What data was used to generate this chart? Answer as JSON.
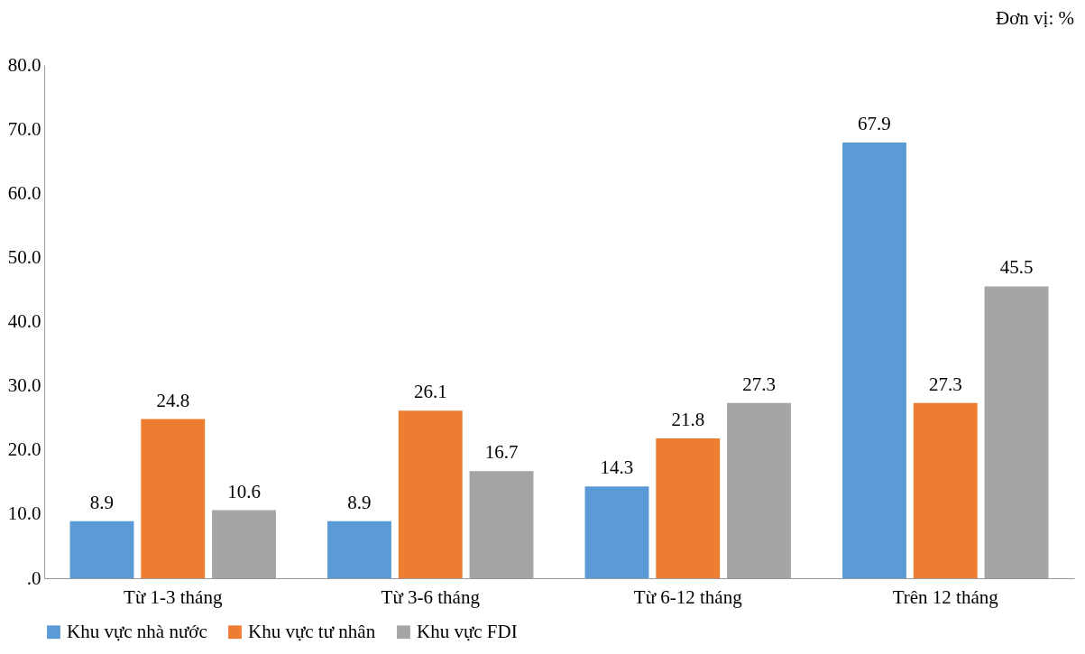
{
  "chart_data": {
    "type": "bar",
    "categories": [
      "Từ 1-3 tháng",
      "Từ 3-6 tháng",
      "Từ 6-12 tháng",
      "Trên 12 tháng"
    ],
    "series": [
      {
        "name": "Khu vực nhà nước",
        "color": "#5b9bd5",
        "values": [
          8.9,
          8.9,
          14.3,
          67.9
        ]
      },
      {
        "name": "Khu vực tư nhân",
        "color": "#ed7d31",
        "values": [
          24.8,
          26.1,
          21.8,
          27.3
        ]
      },
      {
        "name": "Khu vực FDI",
        "color": "#a5a5a5",
        "values": [
          10.6,
          16.7,
          27.3,
          45.5
        ]
      }
    ],
    "ylim": [
      0,
      80
    ],
    "yticks": [
      {
        "value": 0,
        "label": ".0"
      },
      {
        "value": 10,
        "label": "10.0"
      },
      {
        "value": 20,
        "label": "20.0"
      },
      {
        "value": 30,
        "label": "30.0"
      },
      {
        "value": 40,
        "label": "40.0"
      },
      {
        "value": 50,
        "label": "50.0"
      },
      {
        "value": 60,
        "label": "60.0"
      },
      {
        "value": 70,
        "label": "70.0"
      },
      {
        "value": 80,
        "label": "80.0"
      }
    ],
    "annotations": [
      "Đơn vị: %"
    ],
    "data_labels": true,
    "grid": false,
    "legend": "bottom"
  }
}
